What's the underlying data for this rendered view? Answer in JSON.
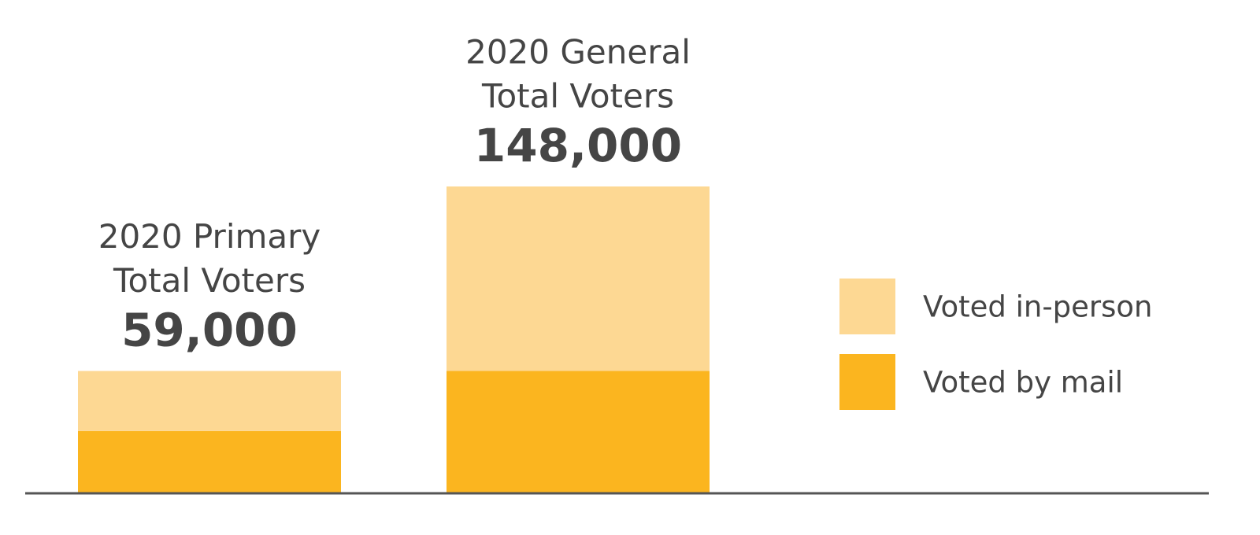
{
  "chart_data": {
    "type": "stacked-bar",
    "categories": [
      [
        "2020 Primary",
        "Total Voters"
      ],
      [
        "2020 General",
        "Total Voters"
      ]
    ],
    "totals": {
      "values": [
        59000,
        148000
      ],
      "value_labels": [
        "59,000",
        "148,000"
      ]
    },
    "series": [
      {
        "name": "Voted by mail",
        "color": "#fbb51f",
        "values": [
          30000,
          59000
        ]
      },
      {
        "name": "Voted in-person",
        "color": "#fdd893",
        "values": [
          29000,
          89000
        ]
      }
    ]
  }
}
